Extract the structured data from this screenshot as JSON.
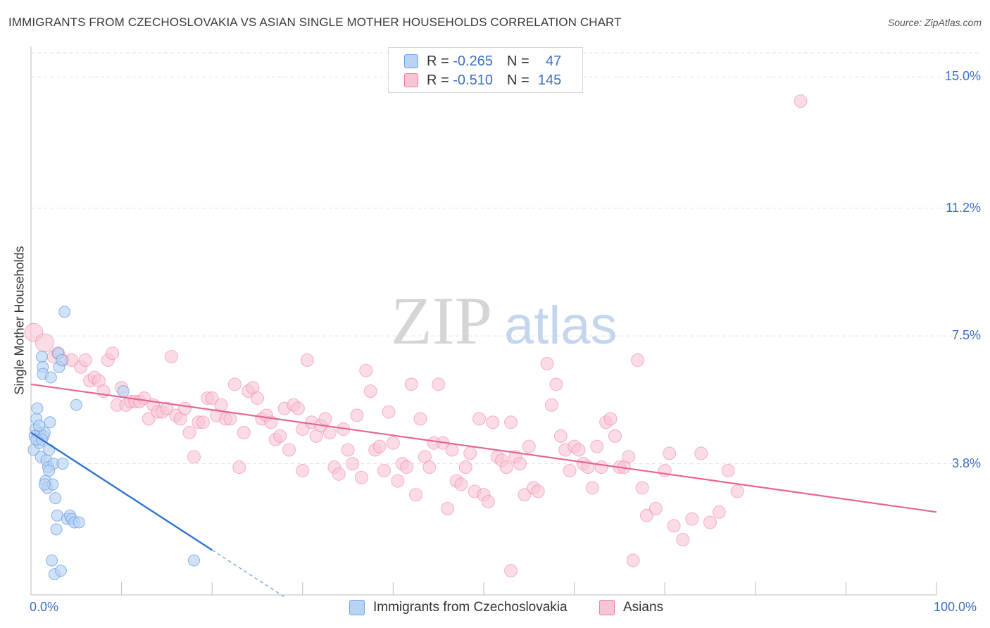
{
  "title": "IMMIGRANTS FROM CZECHOSLOVAKIA VS ASIAN SINGLE MOTHER HOUSEHOLDS CORRELATION CHART",
  "source": "Source: ZipAtlas.com",
  "watermark": {
    "zip": "ZIP",
    "atlas": "atlas"
  },
  "legend": {
    "rows": [
      {
        "r_label": "R = ",
        "r_value": "-0.265",
        "n_label": "N = ",
        "n_value": "47",
        "color": "#a8c8f0"
      },
      {
        "r_label": "R = ",
        "r_value": "-0.510",
        "n_label": "N = ",
        "n_value": "145",
        "color": "#f7b8cb"
      }
    ]
  },
  "bottom_legend": {
    "series1": "Immigrants from Czechoslovakia",
    "series2": "Asians"
  },
  "chart_data": {
    "type": "scatter",
    "title": "IMMIGRANTS FROM CZECHOSLOVAKIA VS ASIAN SINGLE MOTHER HOUSEHOLDS CORRELATION CHART",
    "xlabel": "",
    "ylabel": "Single Mother Households",
    "xlim": [
      0,
      100
    ],
    "ylim": [
      0,
      15.7
    ],
    "x_tick_labels": [
      "0.0%",
      "100.0%"
    ],
    "y_ticks": [
      3.8,
      7.5,
      11.2,
      15.0
    ],
    "y_tick_labels": [
      "3.8%",
      "7.5%",
      "11.2%",
      "15.0%"
    ],
    "grid": true,
    "series": [
      {
        "name": "Immigrants from Czechoslovakia",
        "color": "#6fa3e6",
        "fill": "#b9d3f3",
        "trend": {
          "x0": 0,
          "y0": 4.7,
          "x1": 20,
          "y1": 1.3,
          "dash_to_x": 28
        },
        "points": [
          [
            0.3,
            4.2
          ],
          [
            0.5,
            4.8
          ],
          [
            0.6,
            5.1
          ],
          [
            0.7,
            5.4
          ],
          [
            0.8,
            4.6
          ],
          [
            0.9,
            4.4
          ],
          [
            1.0,
            4.7
          ],
          [
            1.1,
            4.0
          ],
          [
            1.2,
            6.9
          ],
          [
            1.3,
            6.6
          ],
          [
            1.3,
            6.4
          ],
          [
            1.4,
            4.6
          ],
          [
            1.5,
            4.7
          ],
          [
            1.6,
            3.3
          ],
          [
            1.7,
            3.9
          ],
          [
            1.8,
            3.1
          ],
          [
            1.9,
            3.7
          ],
          [
            2.0,
            4.2
          ],
          [
            2.1,
            5.0
          ],
          [
            2.2,
            6.3
          ],
          [
            2.3,
            1.0
          ],
          [
            2.4,
            3.2
          ],
          [
            2.5,
            3.8
          ],
          [
            2.6,
            0.6
          ],
          [
            2.7,
            2.8
          ],
          [
            2.8,
            1.9
          ],
          [
            2.9,
            2.3
          ],
          [
            3.0,
            7.0
          ],
          [
            3.1,
            6.6
          ],
          [
            3.3,
            0.7
          ],
          [
            3.4,
            6.8
          ],
          [
            3.5,
            3.8
          ],
          [
            3.7,
            8.2
          ],
          [
            4.0,
            2.2
          ],
          [
            4.3,
            2.3
          ],
          [
            4.5,
            2.2
          ],
          [
            4.8,
            2.1
          ],
          [
            5.0,
            5.5
          ],
          [
            5.3,
            2.1
          ],
          [
            0.4,
            4.6
          ],
          [
            0.6,
            4.5
          ],
          [
            0.9,
            4.9
          ],
          [
            1.2,
            4.5
          ],
          [
            1.5,
            3.2
          ],
          [
            2.0,
            3.6
          ],
          [
            10.2,
            5.9
          ],
          [
            18.0,
            1.0
          ]
        ]
      },
      {
        "name": "Asians",
        "color": "#ee7aa0",
        "fill": "#f8c5d4",
        "trend": {
          "x0": 0,
          "y0": 6.1,
          "x1": 100,
          "y1": 2.4
        },
        "points": [
          [
            0.3,
            7.6
          ],
          [
            1.5,
            7.3
          ],
          [
            2.5,
            6.9
          ],
          [
            3.0,
            7.0
          ],
          [
            3.5,
            6.8
          ],
          [
            4.5,
            6.8
          ],
          [
            5.5,
            6.6
          ],
          [
            6.0,
            6.8
          ],
          [
            6.5,
            6.2
          ],
          [
            7.0,
            6.3
          ],
          [
            7.5,
            6.2
          ],
          [
            8.0,
            5.9
          ],
          [
            8.5,
            6.8
          ],
          [
            9.0,
            7.0
          ],
          [
            9.5,
            5.5
          ],
          [
            10.0,
            6.0
          ],
          [
            10.5,
            5.5
          ],
          [
            11.0,
            5.6
          ],
          [
            11.5,
            5.6
          ],
          [
            12.0,
            5.6
          ],
          [
            12.5,
            5.7
          ],
          [
            13.0,
            5.1
          ],
          [
            13.5,
            5.5
          ],
          [
            14.0,
            5.3
          ],
          [
            14.5,
            5.3
          ],
          [
            15.0,
            5.4
          ],
          [
            15.5,
            6.9
          ],
          [
            16.0,
            5.2
          ],
          [
            16.5,
            5.1
          ],
          [
            17.0,
            5.4
          ],
          [
            17.5,
            4.7
          ],
          [
            18.0,
            4.0
          ],
          [
            18.5,
            5.0
          ],
          [
            19.0,
            5.0
          ],
          [
            19.5,
            5.7
          ],
          [
            20.0,
            5.7
          ],
          [
            20.5,
            5.2
          ],
          [
            21.0,
            5.5
          ],
          [
            21.5,
            5.1
          ],
          [
            22.0,
            5.1
          ],
          [
            22.5,
            6.1
          ],
          [
            23.0,
            3.7
          ],
          [
            23.5,
            4.7
          ],
          [
            24.0,
            5.9
          ],
          [
            24.5,
            6.0
          ],
          [
            25.0,
            5.7
          ],
          [
            25.5,
            5.1
          ],
          [
            26.0,
            5.2
          ],
          [
            26.5,
            5.0
          ],
          [
            27.0,
            4.5
          ],
          [
            27.5,
            4.6
          ],
          [
            28.0,
            5.4
          ],
          [
            28.5,
            4.2
          ],
          [
            29.0,
            5.5
          ],
          [
            29.5,
            5.4
          ],
          [
            30.0,
            4.8
          ],
          [
            30.5,
            6.8
          ],
          [
            31.0,
            5.0
          ],
          [
            31.5,
            4.6
          ],
          [
            32.0,
            4.9
          ],
          [
            32.5,
            5.1
          ],
          [
            33.0,
            4.7
          ],
          [
            33.5,
            3.7
          ],
          [
            34.0,
            3.5
          ],
          [
            34.5,
            4.8
          ],
          [
            35.0,
            4.2
          ],
          [
            35.5,
            3.8
          ],
          [
            36.0,
            5.2
          ],
          [
            36.5,
            3.4
          ],
          [
            37.0,
            6.5
          ],
          [
            37.5,
            5.9
          ],
          [
            38.0,
            4.2
          ],
          [
            38.5,
            4.3
          ],
          [
            39.0,
            3.6
          ],
          [
            39.5,
            5.3
          ],
          [
            40.0,
            4.4
          ],
          [
            40.5,
            3.3
          ],
          [
            41.0,
            3.8
          ],
          [
            41.5,
            3.7
          ],
          [
            42.0,
            6.1
          ],
          [
            42.5,
            2.9
          ],
          [
            43.0,
            5.1
          ],
          [
            43.5,
            4.0
          ],
          [
            44.0,
            3.7
          ],
          [
            44.5,
            4.4
          ],
          [
            45.0,
            6.1
          ],
          [
            45.5,
            4.4
          ],
          [
            46.0,
            2.5
          ],
          [
            46.5,
            4.2
          ],
          [
            47.0,
            3.3
          ],
          [
            47.5,
            3.2
          ],
          [
            48.0,
            3.7
          ],
          [
            48.5,
            4.1
          ],
          [
            49.0,
            3.0
          ],
          [
            49.5,
            5.1
          ],
          [
            50.0,
            2.9
          ],
          [
            50.5,
            2.7
          ],
          [
            51.0,
            5.0
          ],
          [
            51.5,
            4.0
          ],
          [
            52.0,
            3.9
          ],
          [
            52.5,
            3.7
          ],
          [
            53.0,
            5.0
          ],
          [
            53.5,
            4.0
          ],
          [
            54.0,
            3.8
          ],
          [
            54.5,
            2.9
          ],
          [
            55.0,
            4.3
          ],
          [
            55.5,
            3.1
          ],
          [
            56.0,
            3.0
          ],
          [
            57.0,
            6.7
          ],
          [
            57.5,
            5.5
          ],
          [
            58.0,
            6.1
          ],
          [
            58.5,
            4.6
          ],
          [
            59.0,
            4.2
          ],
          [
            59.5,
            3.6
          ],
          [
            60.0,
            4.3
          ],
          [
            60.5,
            4.2
          ],
          [
            61.0,
            3.8
          ],
          [
            61.5,
            3.7
          ],
          [
            62.0,
            3.1
          ],
          [
            62.5,
            4.3
          ],
          [
            63.0,
            3.7
          ],
          [
            63.5,
            5.0
          ],
          [
            64.0,
            5.1
          ],
          [
            64.5,
            4.6
          ],
          [
            65.0,
            3.7
          ],
          [
            65.5,
            3.7
          ],
          [
            66.0,
            4.0
          ],
          [
            66.5,
            1.0
          ],
          [
            67.0,
            6.8
          ],
          [
            67.5,
            3.1
          ],
          [
            68.0,
            2.3
          ],
          [
            69.0,
            2.5
          ],
          [
            70.0,
            3.6
          ],
          [
            70.5,
            4.1
          ],
          [
            71.0,
            2.0
          ],
          [
            72.0,
            1.6
          ],
          [
            73.0,
            2.2
          ],
          [
            74.0,
            4.1
          ],
          [
            75.0,
            2.1
          ],
          [
            76.0,
            2.4
          ],
          [
            77.0,
            3.6
          ],
          [
            78.0,
            3.0
          ],
          [
            85.0,
            14.3
          ],
          [
            53.0,
            0.7
          ],
          [
            30.0,
            3.6
          ]
        ]
      }
    ]
  }
}
